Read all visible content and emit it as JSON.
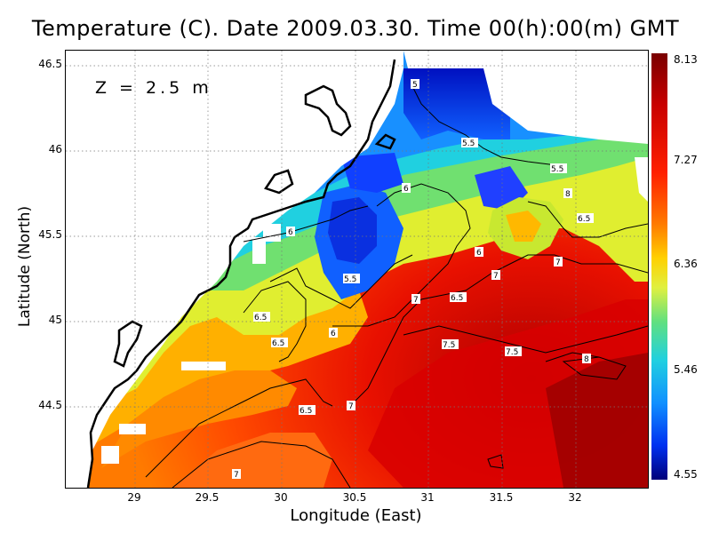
{
  "title": "Temperature (C). Date 2009.03.30. Time 00(h):00(m) GMT",
  "depth_label": "Z = 2.5 m",
  "xlabel": "Longitude (East)",
  "ylabel": "Latitude (North)",
  "x_ticks": [
    "29",
    "29.5",
    "30",
    "30.5",
    "31",
    "31.5",
    "32"
  ],
  "y_ticks": [
    "46.5",
    "46",
    "45.5",
    "45",
    "44.5"
  ],
  "colorbar_labels": [
    "8.13",
    "7.27",
    "6.36",
    "5.46",
    "4.55"
  ],
  "contour_labels": [
    "5",
    "5.5",
    "5.5",
    "6",
    "6",
    "6",
    "6",
    "5.5",
    "6.5",
    "6.5",
    "6.5",
    "6.5",
    "7",
    "7",
    "7",
    "7",
    "7",
    "6.5",
    "7.5",
    "7.5",
    "8",
    "8"
  ],
  "colors": {
    "land": "#ffffff",
    "coast": "#000000",
    "grid": "#9a9a9a"
  },
  "chart_data": {
    "type": "heatmap",
    "title": "Temperature (C). Date 2009.03.30. Time 00(h):00(m) GMT",
    "xlabel": "Longitude (East)",
    "ylabel": "Latitude (North)",
    "xlim": [
      28.45,
      32.45
    ],
    "ylim": [
      44.05,
      46.55
    ],
    "color_range": [
      4.55,
      8.13
    ],
    "depth": "Z = 2.5 m",
    "grid": true,
    "contour_levels": [
      5,
      5.5,
      6,
      6.5,
      7,
      7.5,
      8
    ]
  }
}
